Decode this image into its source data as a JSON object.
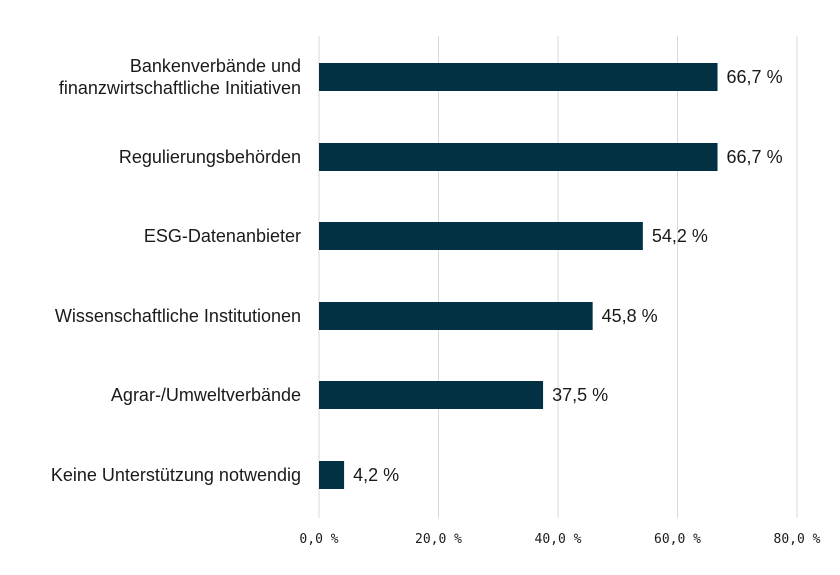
{
  "chart_data": {
    "type": "bar",
    "orientation": "horizontal",
    "categories": [
      [
        "Bankenverbände und",
        "finanzwirtschaftliche Initiativen"
      ],
      [
        "Regulierungsbehörden"
      ],
      [
        "ESG-Datenanbieter"
      ],
      [
        "Wissenschaftliche Institutionen"
      ],
      [
        "Agrar-/Umweltverbände"
      ],
      [
        "Keine Unterstützung notwendig"
      ]
    ],
    "values": [
      66.7,
      66.7,
      54.2,
      45.8,
      37.5,
      4.2
    ],
    "value_labels": [
      "66,7 %",
      "66,7 %",
      "54,2 %",
      "45,8 %",
      "37,5 %",
      "4,2 %"
    ],
    "x_ticks": [
      0,
      20,
      40,
      60,
      80
    ],
    "x_tick_labels": [
      "0,0 %",
      "20,0 %",
      "40,0 %",
      "60,0 %",
      "80,0 %"
    ],
    "xlim": [
      0,
      80
    ],
    "grid": "vertical",
    "bar_color": "#023143"
  }
}
